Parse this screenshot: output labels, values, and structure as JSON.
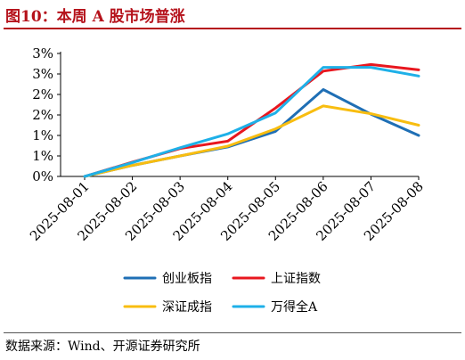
{
  "header": {
    "title": "图10：本周 A 股市场普涨"
  },
  "footer": {
    "source": "数据来源：Wind、开源证券研究所"
  },
  "chart_data": {
    "type": "line",
    "title": "",
    "xlabel": "",
    "ylabel": "",
    "x": [
      "2025-08-01",
      "2025-08-02",
      "2025-08-03",
      "2025-08-04",
      "2025-08-05",
      "2025-08-06",
      "2025-08-07",
      "2025-08-08"
    ],
    "y_ticks": [
      0,
      0.5,
      1,
      1.5,
      2,
      2.5,
      3
    ],
    "y_tick_labels": [
      "0%",
      "1%",
      "1%",
      "2%",
      "2%",
      "3%",
      "3%"
    ],
    "ylim": [
      0,
      3
    ],
    "grid": false,
    "legend_position": "bottom",
    "series": [
      {
        "name": "创业板指",
        "color": "#1F6FB5",
        "values": [
          0,
          0.27,
          0.5,
          0.72,
          1.1,
          2.12,
          1.52,
          1.0
        ]
      },
      {
        "name": "上证指数",
        "color": "#E8171F",
        "values": [
          0,
          0.35,
          0.68,
          0.86,
          1.67,
          2.57,
          2.73,
          2.6
        ]
      },
      {
        "name": "深证成指",
        "color": "#F8BD10",
        "values": [
          0,
          0.27,
          0.5,
          0.74,
          1.16,
          1.72,
          1.53,
          1.25
        ]
      },
      {
        "name": "万得全A",
        "color": "#1EB0E8",
        "values": [
          0,
          0.34,
          0.7,
          1.04,
          1.55,
          2.66,
          2.66,
          2.45
        ]
      }
    ]
  }
}
